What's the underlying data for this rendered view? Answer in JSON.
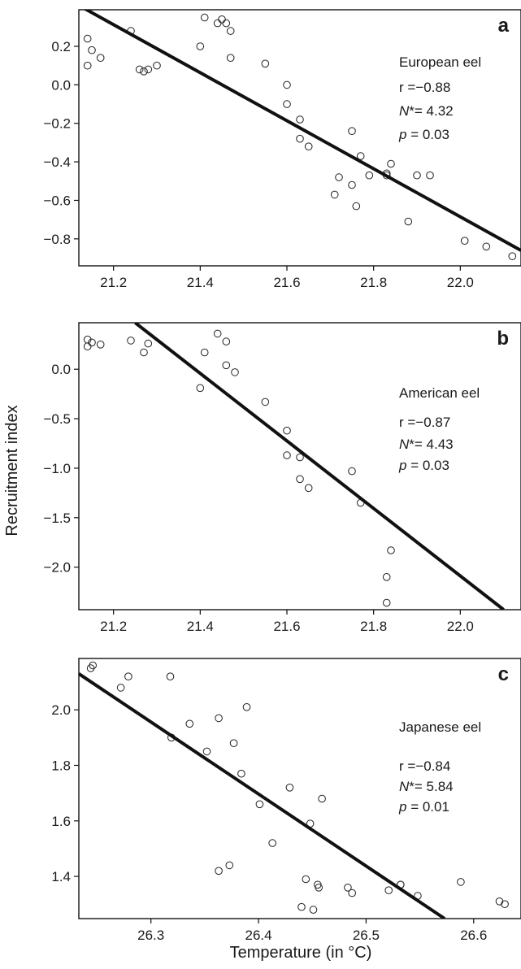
{
  "chart_data": [
    {
      "type": "scatter",
      "panel_letter": "a",
      "species": "European eel",
      "stats": {
        "r_label": "r",
        "r_value": " =−0.88",
        "n_label": "N",
        "n_value": "*= 4.32",
        "p_label": "p",
        "p_value": " = 0.03"
      },
      "xlabel": "",
      "ylabel": "",
      "xlim": [
        21.12,
        22.14
      ],
      "ylim": [
        -0.94,
        0.39
      ],
      "xticks": [
        21.2,
        21.4,
        21.6,
        21.8,
        22.0
      ],
      "xtick_labels": [
        "21.2",
        "21.4",
        "21.6",
        "21.8",
        "22.0"
      ],
      "yticks": [
        0.2,
        0.0,
        -0.2,
        -0.4,
        -0.6,
        -0.8
      ],
      "ytick_labels": [
        "0.2",
        "0.0",
        "−0.2",
        "−0.4",
        "−0.6",
        "−0.8"
      ],
      "points": [
        {
          "x": 21.14,
          "y": 0.24
        },
        {
          "x": 21.14,
          "y": 0.1
        },
        {
          "x": 21.15,
          "y": 0.18
        },
        {
          "x": 21.17,
          "y": 0.14
        },
        {
          "x": 21.24,
          "y": 0.28
        },
        {
          "x": 21.26,
          "y": 0.08
        },
        {
          "x": 21.27,
          "y": 0.07
        },
        {
          "x": 21.28,
          "y": 0.08
        },
        {
          "x": 21.3,
          "y": 0.1
        },
        {
          "x": 21.4,
          "y": 0.2
        },
        {
          "x": 21.41,
          "y": 0.35
        },
        {
          "x": 21.44,
          "y": 0.32
        },
        {
          "x": 21.45,
          "y": 0.34
        },
        {
          "x": 21.46,
          "y": 0.32
        },
        {
          "x": 21.47,
          "y": 0.28
        },
        {
          "x": 21.47,
          "y": 0.14
        },
        {
          "x": 21.55,
          "y": 0.11
        },
        {
          "x": 21.6,
          "y": 0.0
        },
        {
          "x": 21.6,
          "y": -0.1
        },
        {
          "x": 21.63,
          "y": -0.18
        },
        {
          "x": 21.63,
          "y": -0.28
        },
        {
          "x": 21.65,
          "y": -0.32
        },
        {
          "x": 21.71,
          "y": -0.57
        },
        {
          "x": 21.72,
          "y": -0.48
        },
        {
          "x": 21.75,
          "y": -0.24
        },
        {
          "x": 21.75,
          "y": -0.52
        },
        {
          "x": 21.76,
          "y": -0.63
        },
        {
          "x": 21.77,
          "y": -0.37
        },
        {
          "x": 21.79,
          "y": -0.47
        },
        {
          "x": 21.83,
          "y": -0.46
        },
        {
          "x": 21.84,
          "y": -0.41
        },
        {
          "x": 21.83,
          "y": -0.47
        },
        {
          "x": 21.88,
          "y": -0.71
        },
        {
          "x": 21.9,
          "y": -0.47
        },
        {
          "x": 21.93,
          "y": -0.47
        },
        {
          "x": 22.01,
          "y": -0.81
        },
        {
          "x": 22.06,
          "y": -0.84
        },
        {
          "x": 22.12,
          "y": -0.89
        }
      ],
      "fit_line": [
        {
          "x": 21.13,
          "y": 0.4
        },
        {
          "x": 22.14,
          "y": -0.86
        }
      ]
    },
    {
      "type": "scatter",
      "panel_letter": "b",
      "species": "American eel",
      "stats": {
        "r_label": "r",
        "r_value": " =−0.87",
        "n_label": "N",
        "n_value": "*= 4.43",
        "p_label": "p",
        "p_value": " = 0.03"
      },
      "xlabel": "",
      "ylabel": "Recruitment index",
      "xlim": [
        21.12,
        22.14
      ],
      "ylim": [
        -2.43,
        0.47
      ],
      "xticks": [
        21.2,
        21.4,
        21.6,
        21.8,
        22.0
      ],
      "xtick_labels": [
        "21.2",
        "21.4",
        "21.6",
        "21.8",
        "22.0"
      ],
      "yticks": [
        0.0,
        -0.5,
        -1.0,
        -1.5,
        -2.0
      ],
      "ytick_labels": [
        "0.0",
        "−0.5",
        "−1.0",
        "−1.5",
        "−2.0"
      ],
      "points": [
        {
          "x": 21.14,
          "y": 0.3
        },
        {
          "x": 21.14,
          "y": 0.23
        },
        {
          "x": 21.15,
          "y": 0.27
        },
        {
          "x": 21.17,
          "y": 0.25
        },
        {
          "x": 21.24,
          "y": 0.29
        },
        {
          "x": 21.28,
          "y": 0.26
        },
        {
          "x": 21.27,
          "y": 0.17
        },
        {
          "x": 21.4,
          "y": -0.19
        },
        {
          "x": 21.41,
          "y": 0.17
        },
        {
          "x": 21.44,
          "y": 0.36
        },
        {
          "x": 21.46,
          "y": 0.28
        },
        {
          "x": 21.46,
          "y": 0.04
        },
        {
          "x": 21.48,
          "y": -0.03
        },
        {
          "x": 21.55,
          "y": -0.33
        },
        {
          "x": 21.6,
          "y": -0.62
        },
        {
          "x": 21.6,
          "y": -0.87
        },
        {
          "x": 21.63,
          "y": -0.89
        },
        {
          "x": 21.63,
          "y": -1.11
        },
        {
          "x": 21.65,
          "y": -1.2
        },
        {
          "x": 21.75,
          "y": -1.03
        },
        {
          "x": 21.77,
          "y": -1.35
        },
        {
          "x": 21.84,
          "y": -1.83
        },
        {
          "x": 21.83,
          "y": -2.1
        },
        {
          "x": 21.83,
          "y": -2.36
        }
      ],
      "fit_line": [
        {
          "x": 21.25,
          "y": 0.47
        },
        {
          "x": 22.1,
          "y": -2.43
        }
      ]
    },
    {
      "type": "scatter",
      "panel_letter": "c",
      "species": "Japanese eel",
      "stats": {
        "r_label": "r",
        "r_value": " =−0.84",
        "n_label": "N",
        "n_value": "*= 5.84",
        "p_label": "p",
        "p_value": " = 0.01"
      },
      "xlabel": "Temperature (in °C)",
      "ylabel": "",
      "xlim": [
        26.233,
        26.644
      ],
      "ylim": [
        1.248,
        2.185
      ],
      "xticks": [
        26.3,
        26.4,
        26.5,
        26.6
      ],
      "xtick_labels": [
        "26.3",
        "26.4",
        "26.5",
        "26.6"
      ],
      "yticks": [
        2.0,
        1.8,
        1.6,
        1.4
      ],
      "ytick_labels": [
        "2.0",
        "1.8",
        "1.6",
        "1.4"
      ],
      "points": [
        {
          "x": 26.244,
          "y": 2.15
        },
        {
          "x": 26.246,
          "y": 2.16
        },
        {
          "x": 26.272,
          "y": 2.08
        },
        {
          "x": 26.279,
          "y": 2.12
        },
        {
          "x": 26.318,
          "y": 2.12
        },
        {
          "x": 26.319,
          "y": 1.9
        },
        {
          "x": 26.336,
          "y": 1.95
        },
        {
          "x": 26.352,
          "y": 1.85
        },
        {
          "x": 26.363,
          "y": 1.97
        },
        {
          "x": 26.363,
          "y": 1.42
        },
        {
          "x": 26.373,
          "y": 1.44
        },
        {
          "x": 26.377,
          "y": 1.88
        },
        {
          "x": 26.384,
          "y": 1.77
        },
        {
          "x": 26.389,
          "y": 2.01
        },
        {
          "x": 26.401,
          "y": 1.66
        },
        {
          "x": 26.413,
          "y": 1.52
        },
        {
          "x": 26.429,
          "y": 1.72
        },
        {
          "x": 26.44,
          "y": 1.29
        },
        {
          "x": 26.444,
          "y": 1.39
        },
        {
          "x": 26.448,
          "y": 1.59
        },
        {
          "x": 26.451,
          "y": 1.28
        },
        {
          "x": 26.455,
          "y": 1.37
        },
        {
          "x": 26.456,
          "y": 1.36
        },
        {
          "x": 26.459,
          "y": 1.68
        },
        {
          "x": 26.483,
          "y": 1.36
        },
        {
          "x": 26.487,
          "y": 1.34
        },
        {
          "x": 26.521,
          "y": 1.35
        },
        {
          "x": 26.532,
          "y": 1.37
        },
        {
          "x": 26.532,
          "y": 1.37
        },
        {
          "x": 26.548,
          "y": 1.33
        },
        {
          "x": 26.588,
          "y": 1.38
        },
        {
          "x": 26.624,
          "y": 1.31
        },
        {
          "x": 26.629,
          "y": 1.3
        }
      ],
      "fit_line": [
        {
          "x": 26.233,
          "y": 2.13
        },
        {
          "x": 26.573,
          "y": 1.248
        }
      ]
    }
  ]
}
